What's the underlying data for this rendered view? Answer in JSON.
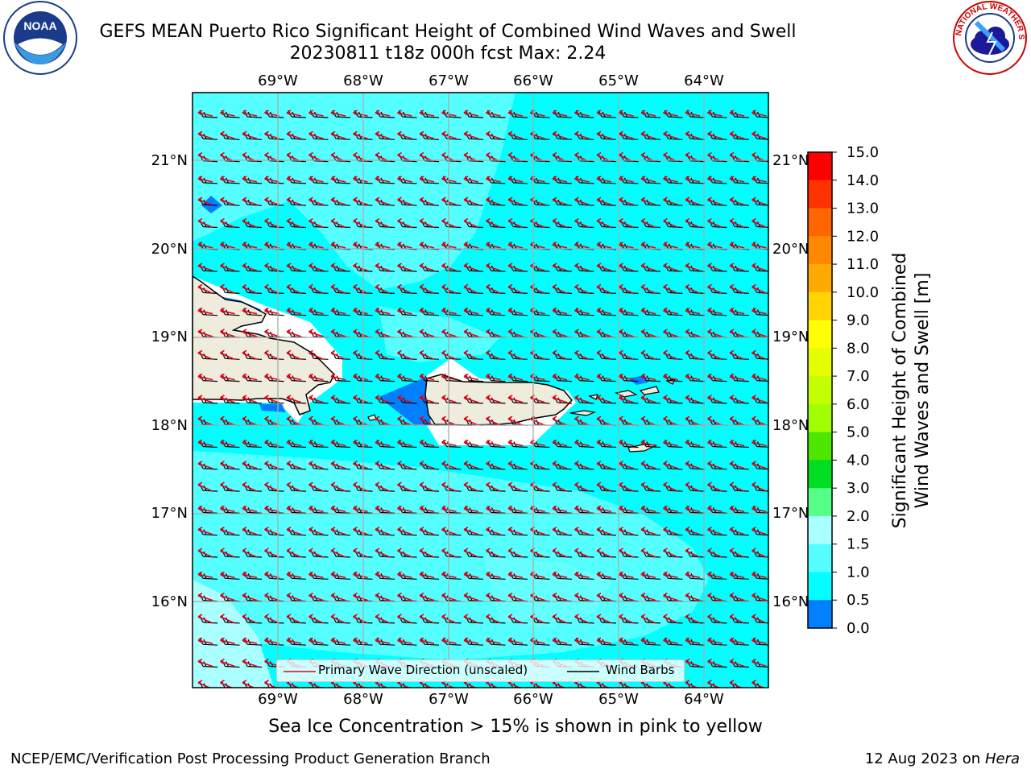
{
  "header": {
    "title_line1": "GEFS MEAN Puerto Rico Significant Height of Combined Wind Waves and Swell",
    "title_line2": "20230811 t18z 000h fcst   Max: 2.24"
  },
  "logos": {
    "left_text": "NOAA",
    "right_text": "NATIONAL WEATHER SERVICE"
  },
  "map": {
    "lon_ticks_top": [
      "69°W",
      "68°W",
      "67°W",
      "66°W",
      "65°W",
      "64°W"
    ],
    "lon_ticks_bottom": [
      "69°W",
      "68°W",
      "67°W",
      "66°W",
      "65°W",
      "64°W"
    ],
    "lat_ticks_left": [
      "21°N",
      "20°N",
      "19°N",
      "18°N",
      "17°N",
      "16°N"
    ],
    "lat_ticks_right": [
      "21°N",
      "20°N",
      "19°N",
      "18°N",
      "17°N",
      "16°N"
    ],
    "legend": {
      "wave_direction": "Primary Wave Direction (unscaled)",
      "wind_barbs": "Wind Barbs"
    },
    "colors": {
      "ocean_main": "#00ffff",
      "ocean_light": "#55ffff",
      "ocean_lighter": "#aaffff",
      "ocean_dark": "#0080ff",
      "land": "#eeecdc",
      "arrow": "#e8001a",
      "barb": "#000000"
    }
  },
  "colorbar": {
    "title_line1": "Significant Height of Combined",
    "title_line2": "Wind Waves and Swell [m]",
    "labels": [
      "15.0",
      "14.0",
      "13.0",
      "12.0",
      "11.0",
      "10.0",
      "9.0",
      "8.0",
      "7.0",
      "6.0",
      "5.0",
      "4.0",
      "3.0",
      "2.0",
      "1.5",
      "1.0",
      "0.5",
      "0.0"
    ],
    "colors": [
      "#ff0000",
      "#ff3300",
      "#ff6600",
      "#ff8800",
      "#ffaa00",
      "#ffd400",
      "#ffff00",
      "#e5ff00",
      "#c4ff00",
      "#a0ff00",
      "#4ce600",
      "#00dd22",
      "#55ff88",
      "#aaffff",
      "#55ffff",
      "#00ffff",
      "#0080ff",
      "#0000ff"
    ]
  },
  "footer": {
    "subtitle": "Sea Ice Concentration > 15% is shown in pink to yellow",
    "left": "NCEP/EMC/Verification Post Processing Product Generation Branch",
    "right_date": "12 Aug 2023 on",
    "right_host": "Hera"
  }
}
